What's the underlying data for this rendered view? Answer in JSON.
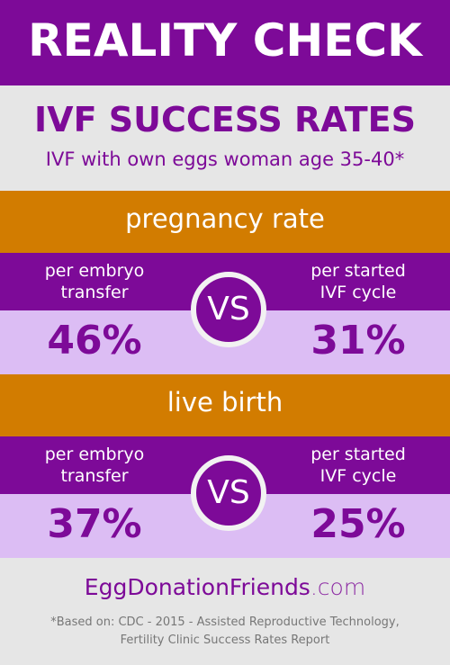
{
  "header": {
    "title": "REALITY CHECK"
  },
  "intro": {
    "title": "IVF SUCCESS RATES",
    "subtitle": "IVF with own eggs woman age 35-40*"
  },
  "sections": [
    {
      "title": "pregnancy rate",
      "left_label": [
        "per embryo",
        "transfer"
      ],
      "right_label": [
        "per started",
        "IVF cycle"
      ],
      "vs": "VS",
      "left_value": "46%",
      "right_value": "31%"
    },
    {
      "title": "live birth",
      "left_label": [
        "per embryo",
        "transfer"
      ],
      "right_label": [
        "per started",
        "IVF cycle"
      ],
      "vs": "VS",
      "left_value": "37%",
      "right_value": "25%"
    }
  ],
  "footer": {
    "brand": "EggDonationFriends",
    "domain": ".com",
    "note": [
      "*Based on:  CDC - 2015 - Assisted Reproductive Technology,",
      "Fertility Clinic Success Rates Report"
    ]
  }
}
